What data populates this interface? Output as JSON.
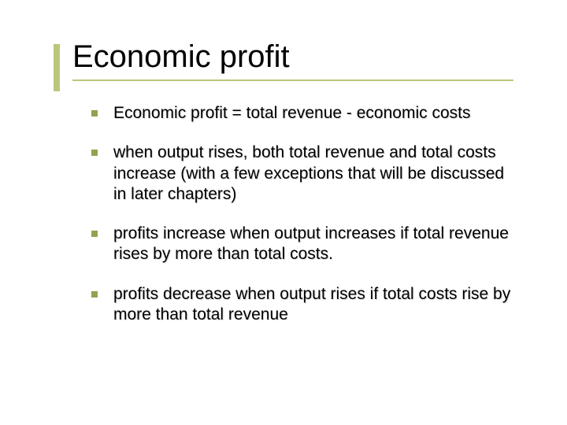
{
  "slide": {
    "title": "Economic profit",
    "accent_color": "#b9c77a",
    "bullet_color": "#93a24e",
    "text_color": "#000000",
    "background_color": "#ffffff",
    "title_fontsize": 40,
    "body_fontsize": 21,
    "bullets": [
      "Economic profit = total revenue - economic costs",
      "when output rises, both total revenue and total costs increase (with a few exceptions that will be discussed in later chapters)",
      "profits increase when output increases if total revenue rises by more than total costs.",
      "profits decrease when output rises if total costs rise by more than total revenue"
    ]
  }
}
